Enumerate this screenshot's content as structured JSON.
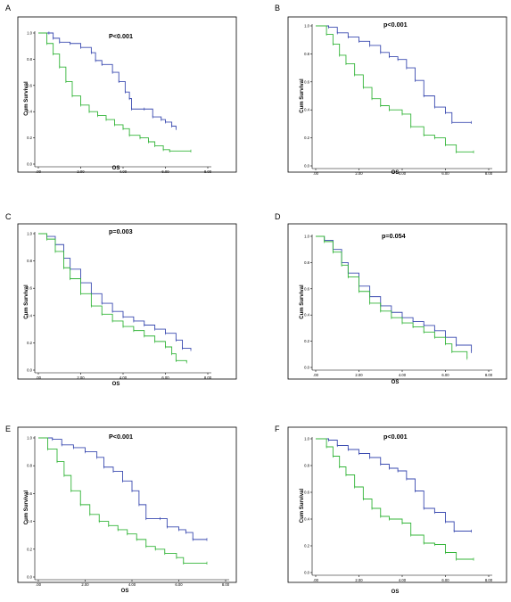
{
  "chart_data": [
    {
      "panel": "A",
      "type": "line",
      "p_text": "P<0.001",
      "xlabel": "OS",
      "ylabel": "Cum Survival",
      "xlim": [
        0,
        8
      ],
      "ylim": [
        0,
        1
      ],
      "xticks": [
        ".00",
        "2.00",
        "4.00",
        "6.00",
        "8.00"
      ],
      "yticks": [
        "0.0",
        "0.2",
        "0.4",
        "0.6",
        "0.8",
        "1.0"
      ],
      "series": [
        {
          "color": "#3b4bb0",
          "x": [
            0,
            0.5,
            0.7,
            1.0,
            1.5,
            2.0,
            2.5,
            2.7,
            3.0,
            3.5,
            3.8,
            4.1,
            4.3,
            4.4,
            5.0,
            5.4,
            5.8,
            6.0,
            6.3,
            6.5
          ],
          "y": [
            1.0,
            1.0,
            0.96,
            0.93,
            0.92,
            0.89,
            0.85,
            0.79,
            0.76,
            0.7,
            0.63,
            0.55,
            0.5,
            0.42,
            0.42,
            0.36,
            0.34,
            0.32,
            0.29,
            0.27
          ]
        },
        {
          "color": "#34b53a",
          "x": [
            0,
            0.4,
            0.7,
            1.0,
            1.3,
            1.6,
            2.0,
            2.4,
            2.8,
            3.2,
            3.6,
            4.0,
            4.3,
            4.8,
            5.2,
            5.5,
            5.9,
            6.2,
            7.2
          ],
          "y": [
            1.0,
            0.92,
            0.84,
            0.74,
            0.63,
            0.52,
            0.45,
            0.4,
            0.37,
            0.34,
            0.3,
            0.27,
            0.22,
            0.2,
            0.17,
            0.14,
            0.11,
            0.1,
            0.1
          ]
        }
      ]
    },
    {
      "panel": "B",
      "type": "line",
      "p_text": "p<0.001",
      "xlabel": "OS",
      "ylabel": "Cum Survival",
      "xlim": [
        0,
        8
      ],
      "ylim": [
        0,
        1
      ],
      "xticks": [
        ".00",
        "2.00",
        "4.00",
        "6.00",
        "8.00"
      ],
      "yticks": [
        "0.0",
        "0.2",
        "0.4",
        "0.6",
        "0.8",
        "1.0"
      ],
      "series": [
        {
          "color": "#3b4bb0",
          "x": [
            0,
            0.6,
            1.0,
            1.5,
            2.0,
            2.5,
            3.0,
            3.4,
            3.8,
            4.2,
            4.6,
            5.0,
            5.5,
            6.0,
            6.3,
            7.2
          ],
          "y": [
            1.0,
            0.99,
            0.95,
            0.92,
            0.89,
            0.86,
            0.81,
            0.78,
            0.76,
            0.7,
            0.61,
            0.5,
            0.42,
            0.38,
            0.31,
            0.31
          ]
        },
        {
          "color": "#34b53a",
          "x": [
            0,
            0.5,
            0.8,
            1.1,
            1.4,
            1.8,
            2.2,
            2.6,
            3.0,
            3.4,
            4.0,
            4.4,
            5.0,
            5.5,
            6.0,
            6.5,
            7.3
          ],
          "y": [
            1.0,
            0.94,
            0.87,
            0.79,
            0.73,
            0.65,
            0.56,
            0.48,
            0.43,
            0.4,
            0.37,
            0.28,
            0.22,
            0.2,
            0.15,
            0.1,
            0.1
          ]
        }
      ]
    },
    {
      "panel": "C",
      "type": "line",
      "p_text": "p=0.003",
      "xlabel": "OS",
      "ylabel": "Cum Survival",
      "xlim": [
        0,
        8
      ],
      "ylim": [
        0,
        1
      ],
      "xticks": [
        ".00",
        "2.00",
        "4.00",
        "6.00",
        "8.00"
      ],
      "yticks": [
        "0.0",
        "0.2",
        "0.4",
        "0.6",
        "0.8",
        "1.0"
      ],
      "series": [
        {
          "color": "#3b4bb0",
          "x": [
            0,
            0.4,
            0.8,
            1.2,
            1.5,
            2.0,
            2.5,
            3.0,
            3.5,
            4.0,
            4.5,
            5.0,
            5.5,
            6.0,
            6.5,
            6.8,
            7.2
          ],
          "y": [
            1.0,
            0.98,
            0.92,
            0.82,
            0.74,
            0.64,
            0.56,
            0.49,
            0.43,
            0.39,
            0.36,
            0.33,
            0.3,
            0.27,
            0.22,
            0.16,
            0.15
          ]
        },
        {
          "color": "#34b53a",
          "x": [
            0,
            0.4,
            0.8,
            1.2,
            1.5,
            2.0,
            2.5,
            3.0,
            3.5,
            4.0,
            4.5,
            5.0,
            5.5,
            6.0,
            6.3,
            6.5,
            7.0
          ],
          "y": [
            1.0,
            0.96,
            0.87,
            0.75,
            0.67,
            0.56,
            0.47,
            0.41,
            0.36,
            0.32,
            0.29,
            0.25,
            0.21,
            0.17,
            0.12,
            0.07,
            0.06
          ]
        }
      ]
    },
    {
      "panel": "D",
      "type": "line",
      "p_text": "p=0.054",
      "xlabel": "OS",
      "ylabel": "Cum Survival",
      "xlim": [
        0,
        8
      ],
      "ylim": [
        0,
        1
      ],
      "xticks": [
        ".00",
        "2.00",
        "4.00",
        "6.00",
        "8.00"
      ],
      "yticks": [
        "0.0",
        "0.2",
        "0.4",
        "0.6",
        "0.8",
        "1.0"
      ],
      "series": [
        {
          "color": "#3b4bb0",
          "x": [
            0,
            0.4,
            0.8,
            1.2,
            1.5,
            2.0,
            2.5,
            3.0,
            3.5,
            4.0,
            4.5,
            5.0,
            5.5,
            6.0,
            6.5,
            7.2
          ],
          "y": [
            1.0,
            0.97,
            0.9,
            0.8,
            0.72,
            0.62,
            0.54,
            0.47,
            0.42,
            0.38,
            0.35,
            0.32,
            0.28,
            0.23,
            0.17,
            0.12
          ]
        },
        {
          "color": "#34b53a",
          "x": [
            0,
            0.4,
            0.8,
            1.2,
            1.5,
            2.0,
            2.5,
            3.0,
            3.5,
            4.0,
            4.5,
            5.0,
            5.5,
            6.0,
            6.3,
            7.0
          ],
          "y": [
            1.0,
            0.96,
            0.88,
            0.78,
            0.69,
            0.58,
            0.49,
            0.43,
            0.38,
            0.34,
            0.31,
            0.27,
            0.23,
            0.18,
            0.12,
            0.07
          ]
        }
      ]
    },
    {
      "panel": "E",
      "type": "line",
      "p_text": "P<0.001",
      "xlabel": "OS",
      "ylabel": "Cum Survival",
      "xlim": [
        0,
        8
      ],
      "ylim": [
        0,
        1
      ],
      "xticks": [
        ".00",
        "2.00",
        "4.00",
        "6.00",
        "8.00"
      ],
      "yticks": [
        "0.0",
        "0.2",
        "0.4",
        "0.6",
        "0.8",
        "1.0"
      ],
      "series": [
        {
          "color": "#3b4bb0",
          "x": [
            0,
            0.6,
            1.0,
            1.5,
            2.0,
            2.5,
            2.8,
            3.2,
            3.6,
            4.0,
            4.3,
            4.6,
            5.2,
            5.5,
            6.0,
            6.3,
            6.6,
            7.2
          ],
          "y": [
            1.0,
            0.99,
            0.95,
            0.93,
            0.9,
            0.86,
            0.79,
            0.76,
            0.69,
            0.62,
            0.52,
            0.42,
            0.42,
            0.36,
            0.34,
            0.32,
            0.27,
            0.27
          ]
        },
        {
          "color": "#34b53a",
          "x": [
            0,
            0.4,
            0.8,
            1.1,
            1.4,
            1.8,
            2.2,
            2.6,
            3.0,
            3.4,
            3.8,
            4.2,
            4.6,
            5.0,
            5.4,
            5.9,
            6.2,
            7.2
          ],
          "y": [
            1.0,
            0.92,
            0.83,
            0.73,
            0.62,
            0.52,
            0.45,
            0.4,
            0.37,
            0.34,
            0.31,
            0.27,
            0.22,
            0.2,
            0.17,
            0.14,
            0.1,
            0.1
          ]
        }
      ]
    },
    {
      "panel": "F",
      "type": "line",
      "p_text": "p<0.001",
      "xlabel": "OS",
      "ylabel": "Cum Survival",
      "xlim": [
        0,
        8
      ],
      "ylim": [
        0,
        1
      ],
      "xticks": [
        ".00",
        "2.00",
        "4.00",
        "6.00",
        "8.00"
      ],
      "yticks": [
        "0.0",
        "0.2",
        "0.4",
        "0.6",
        "0.8",
        "1.0"
      ],
      "series": [
        {
          "color": "#3b4bb0",
          "x": [
            0,
            0.6,
            1.0,
            1.5,
            2.0,
            2.5,
            3.0,
            3.4,
            3.8,
            4.2,
            4.6,
            5.0,
            5.5,
            6.0,
            6.4,
            7.2
          ],
          "y": [
            1.0,
            0.99,
            0.95,
            0.92,
            0.89,
            0.86,
            0.81,
            0.78,
            0.76,
            0.7,
            0.61,
            0.48,
            0.45,
            0.38,
            0.31,
            0.31
          ]
        },
        {
          "color": "#34b53a",
          "x": [
            0,
            0.5,
            0.8,
            1.1,
            1.4,
            1.8,
            2.2,
            2.6,
            3.0,
            3.4,
            4.0,
            4.4,
            5.0,
            5.5,
            6.0,
            6.5,
            7.3
          ],
          "y": [
            1.0,
            0.94,
            0.87,
            0.79,
            0.73,
            0.64,
            0.55,
            0.48,
            0.42,
            0.4,
            0.37,
            0.28,
            0.22,
            0.21,
            0.15,
            0.1,
            0.1
          ]
        }
      ]
    }
  ]
}
